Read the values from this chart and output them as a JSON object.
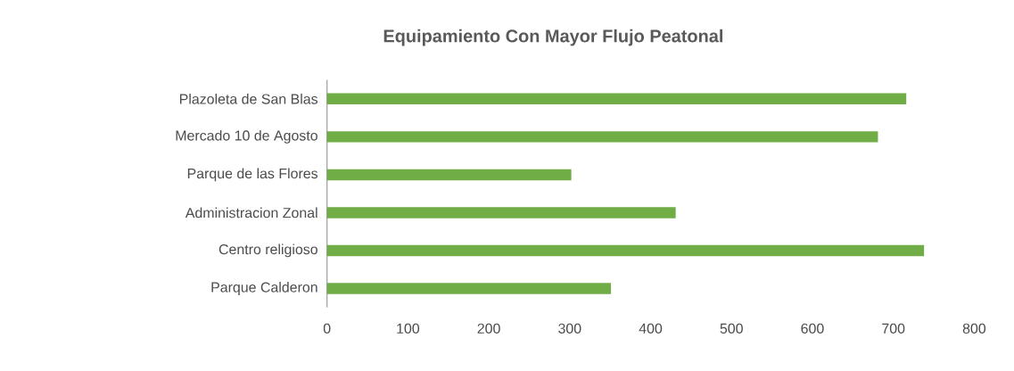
{
  "chart_data": {
    "type": "bar",
    "orientation": "horizontal",
    "title": "Equipamiento Con Mayor Flujo Peatonal",
    "categories": [
      "Plazoleta de San Blas",
      "Mercado 10 de Agosto",
      "Parque de las Flores",
      "Administracion Zonal",
      "Centro religioso",
      "Parque Calderon"
    ],
    "values": [
      716,
      681,
      302,
      431,
      738,
      351
    ],
    "color": "#70ad47",
    "xlim": [
      0,
      800
    ],
    "xticks": [
      0,
      100,
      200,
      300,
      400,
      500,
      600,
      700,
      800
    ],
    "grid": false
  }
}
